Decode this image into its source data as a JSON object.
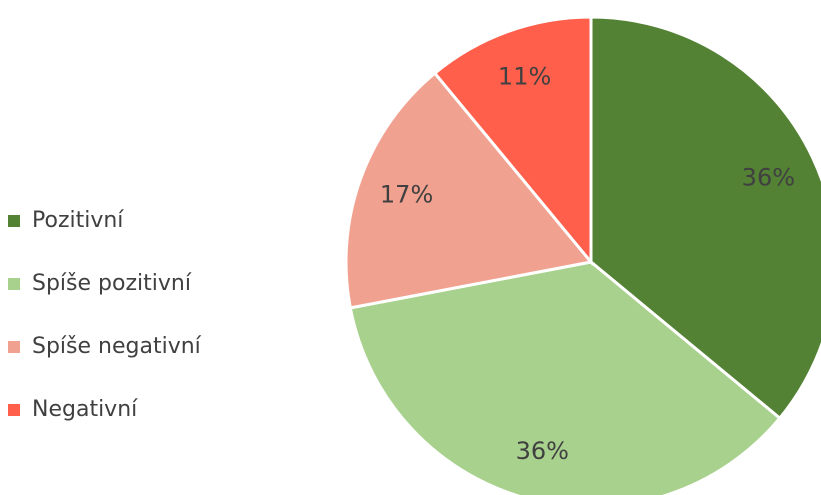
{
  "chart_data": {
    "type": "pie",
    "categories": [
      "Pozitivní",
      "Spíše pozitivní",
      "Spíše negativní",
      "Negativní"
    ],
    "values": [
      36,
      36,
      17,
      11
    ],
    "value_labels": [
      "36%",
      "36%",
      "17%",
      "11%"
    ],
    "colors": [
      "#548235",
      "#a9d18e",
      "#f1a190",
      "#ff5f4b"
    ],
    "legend": "left"
  }
}
